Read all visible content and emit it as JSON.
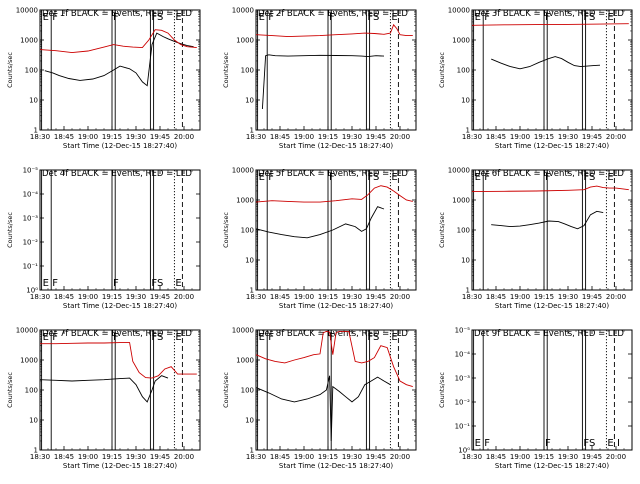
{
  "page": {
    "background": "#ffffff"
  },
  "colors": {
    "events": "#000000",
    "lld": "#cc0000"
  },
  "x_axis": {
    "label": "Start Time (12-Dec-15 18:27:40)",
    "ticks": [
      "18:30",
      "18:45",
      "19:00",
      "19:15",
      "19:30",
      "19:45",
      "20:00"
    ],
    "tick_minutes": [
      0,
      15,
      30,
      45,
      60,
      75,
      90
    ]
  },
  "y_label": "Counts/sec",
  "y_ticks_log": [
    "1",
    "10",
    "100",
    "1000",
    "10000"
  ],
  "y_ticks_empty": [
    "10⁰",
    "10⁻¹",
    "10⁻²",
    "10⁻³",
    "10⁻⁴",
    "10⁻⁵"
  ],
  "xrange_min": [
    0,
    100
  ],
  "marker_minutes": {
    "solid": [
      1,
      7,
      45,
      47,
      69,
      71
    ],
    "dotted": [
      84
    ],
    "dashed": [
      89
    ]
  },
  "chart_data": [
    {
      "type": "line",
      "title": "Det 1f BLACK = Events, RED = LLD",
      "scale": "log",
      "ylim": [
        1,
        10000
      ],
      "labels_top": [
        "E",
        "F",
        "F",
        "FS",
        "E"
      ],
      "labels_bottom": [],
      "series": [
        {
          "name": "Events",
          "color": "#000000",
          "x": [
            3,
            8,
            12,
            18,
            25,
            33,
            40,
            46,
            50,
            56,
            60,
            64,
            67,
            70,
            73,
            77,
            80,
            84,
            88,
            92,
            96
          ],
          "y": [
            95,
            80,
            65,
            52,
            45,
            50,
            65,
            100,
            135,
            110,
            80,
            40,
            30,
            700,
            1700,
            1300,
            1100,
            900,
            750,
            650,
            600
          ]
        },
        {
          "name": "LLD",
          "color": "#cc0000",
          "x": [
            0,
            10,
            20,
            30,
            40,
            46,
            52,
            58,
            64,
            68,
            72,
            76,
            80,
            84,
            88,
            92,
            98
          ],
          "y": [
            480,
            440,
            380,
            430,
            580,
            700,
            620,
            580,
            560,
            1000,
            2200,
            2100,
            1700,
            1000,
            700,
            600,
            560
          ]
        }
      ]
    },
    {
      "type": "line",
      "title": "Det 2f BLACK = Events, RED = LLD",
      "scale": "log",
      "ylim": [
        1,
        10000
      ],
      "labels_top": [
        "E",
        "F",
        "F",
        "FS",
        "E"
      ],
      "labels_bottom": [],
      "series": [
        {
          "name": "Events",
          "color": "#000000",
          "x": [
            4,
            6,
            8,
            12,
            20,
            30,
            40,
            50,
            60,
            66,
            70,
            75,
            80
          ],
          "y": [
            5,
            300,
            320,
            300,
            290,
            300,
            310,
            305,
            300,
            290,
            280,
            300,
            290
          ]
        },
        {
          "name": "LLD",
          "color": "#cc0000",
          "x": [
            0,
            10,
            20,
            30,
            40,
            50,
            60,
            68,
            74,
            80,
            84,
            86,
            88,
            90,
            94,
            98
          ],
          "y": [
            1500,
            1400,
            1300,
            1350,
            1400,
            1500,
            1600,
            1700,
            1650,
            1550,
            1700,
            3200,
            2400,
            1500,
            1400,
            1400
          ]
        }
      ]
    },
    {
      "type": "line",
      "title": "Det 3f BLACK = Events, RED = LLD",
      "scale": "log",
      "ylim": [
        1,
        10000
      ],
      "labels_top": [
        "E",
        "F",
        "F",
        "FS",
        "E"
      ],
      "labels_bottom": [],
      "series": [
        {
          "name": "Events",
          "color": "#000000",
          "x": [
            12,
            18,
            24,
            30,
            36,
            42,
            48,
            52,
            56,
            60,
            64,
            68,
            72,
            76,
            80
          ],
          "y": [
            230,
            170,
            130,
            110,
            130,
            180,
            240,
            280,
            240,
            180,
            140,
            130,
            135,
            140,
            145
          ]
        },
        {
          "name": "LLD",
          "color": "#cc0000",
          "x": [
            0,
            20,
            40,
            60,
            80,
            98
          ],
          "y": [
            3100,
            3200,
            3250,
            3300,
            3400,
            3500
          ]
        }
      ]
    },
    {
      "type": "line",
      "title": "Det 4f BLACK = Events, RED = LLD",
      "scale": "empty",
      "ylim": [
        1e-05,
        1
      ],
      "labels_top": [],
      "labels_bottom": [
        "E",
        "F",
        "F",
        "FS",
        "E"
      ],
      "series": []
    },
    {
      "type": "line",
      "title": "Det 5f BLACK = Events, RED = LLD",
      "scale": "log",
      "ylim": [
        1,
        10000
      ],
      "labels_top": [
        "E",
        "F",
        "F",
        "FS",
        "E"
      ],
      "labels_bottom": [],
      "series": [
        {
          "name": "Events",
          "color": "#000000",
          "x": [
            0,
            8,
            16,
            24,
            32,
            40,
            48,
            56,
            62,
            66,
            69,
            72,
            76,
            80
          ],
          "y": [
            110,
            85,
            70,
            60,
            55,
            70,
            100,
            160,
            130,
            90,
            110,
            250,
            600,
            500
          ]
        },
        {
          "name": "LLD",
          "color": "#cc0000",
          "x": [
            0,
            10,
            20,
            30,
            40,
            50,
            60,
            66,
            70,
            74,
            78,
            82,
            86,
            90,
            94,
            98
          ],
          "y": [
            850,
            950,
            900,
            850,
            850,
            950,
            1100,
            1050,
            1500,
            2500,
            3000,
            2700,
            2000,
            1400,
            1000,
            900
          ]
        }
      ]
    },
    {
      "type": "line",
      "title": "Det 6f BLACK = Events, RED = LLD",
      "scale": "log",
      "ylim": [
        1,
        10000
      ],
      "labels_top": [
        "E",
        "F",
        "F",
        "FS",
        "E"
      ],
      "labels_bottom": [],
      "series": [
        {
          "name": "Events",
          "color": "#000000",
          "x": [
            12,
            18,
            24,
            30,
            36,
            42,
            48,
            54,
            58,
            62,
            66,
            70,
            74,
            78,
            82
          ],
          "y": [
            150,
            140,
            130,
            135,
            150,
            170,
            200,
            190,
            160,
            130,
            110,
            140,
            320,
            420,
            380
          ]
        },
        {
          "name": "LLD",
          "color": "#cc0000",
          "x": [
            0,
            20,
            40,
            60,
            70,
            74,
            78,
            82,
            86,
            90,
            95,
            98
          ],
          "y": [
            1900,
            1950,
            2000,
            2100,
            2200,
            2700,
            2900,
            2600,
            2500,
            2500,
            2300,
            2200
          ]
        }
      ]
    },
    {
      "type": "line",
      "title": "Det 7f BLACK = Events, RED = LLD",
      "scale": "log",
      "ylim": [
        1,
        10000
      ],
      "labels_top": [
        "E",
        "F",
        "F",
        "FS",
        "E"
      ],
      "labels_bottom": [],
      "series": [
        {
          "name": "Events",
          "color": "#000000",
          "x": [
            0,
            10,
            20,
            30,
            40,
            50,
            56,
            60,
            64,
            67,
            70,
            72,
            76,
            80
          ],
          "y": [
            220,
            210,
            200,
            210,
            220,
            240,
            250,
            150,
            60,
            40,
            100,
            200,
            300,
            250
          ]
        },
        {
          "name": "LLD",
          "color": "#cc0000",
          "x": [
            0,
            10,
            20,
            30,
            40,
            50,
            56,
            58,
            62,
            66,
            70,
            74,
            78,
            82,
            86,
            90,
            98
          ],
          "y": [
            3500,
            3500,
            3600,
            3700,
            3700,
            3800,
            3800,
            900,
            380,
            260,
            250,
            300,
            500,
            600,
            340,
            340,
            340
          ]
        }
      ]
    },
    {
      "type": "line",
      "title": "Det 8f BLACK = Events, RED = LLD",
      "scale": "log",
      "ylim": [
        1,
        10000
      ],
      "labels_top": [
        "E",
        "F",
        "F",
        "FS",
        "E"
      ],
      "labels_bottom": [],
      "series": [
        {
          "name": "Events",
          "color": "#000000",
          "x": [
            0,
            8,
            16,
            24,
            32,
            40,
            44,
            46,
            47,
            48,
            52,
            56,
            60,
            64,
            68,
            72,
            76,
            80,
            84
          ],
          "y": [
            120,
            80,
            50,
            40,
            50,
            70,
            100,
            300,
            2,
            130,
            90,
            60,
            40,
            60,
            150,
            200,
            270,
            200,
            150
          ]
        },
        {
          "name": "LLD",
          "color": "#cc0000",
          "x": [
            0,
            6,
            12,
            18,
            24,
            30,
            36,
            40,
            42,
            44,
            46,
            48,
            50,
            52,
            58,
            62,
            66,
            70,
            74,
            78,
            82,
            86,
            90,
            94,
            98
          ],
          "y": [
            1500,
            1100,
            900,
            800,
            1000,
            1200,
            1500,
            1600,
            8000,
            9000,
            8500,
            1500,
            8000,
            9000,
            9000,
            900,
            800,
            900,
            1200,
            3000,
            2600,
            600,
            200,
            150,
            130
          ]
        }
      ]
    },
    {
      "type": "line",
      "title": "Det 9f BLACK = Events, RED = LLD",
      "scale": "empty",
      "ylim": [
        1e-05,
        1
      ],
      "labels_top": [],
      "labels_bottom": [
        "E",
        "F",
        "F",
        "FS",
        "E",
        "I"
      ],
      "series": []
    }
  ]
}
